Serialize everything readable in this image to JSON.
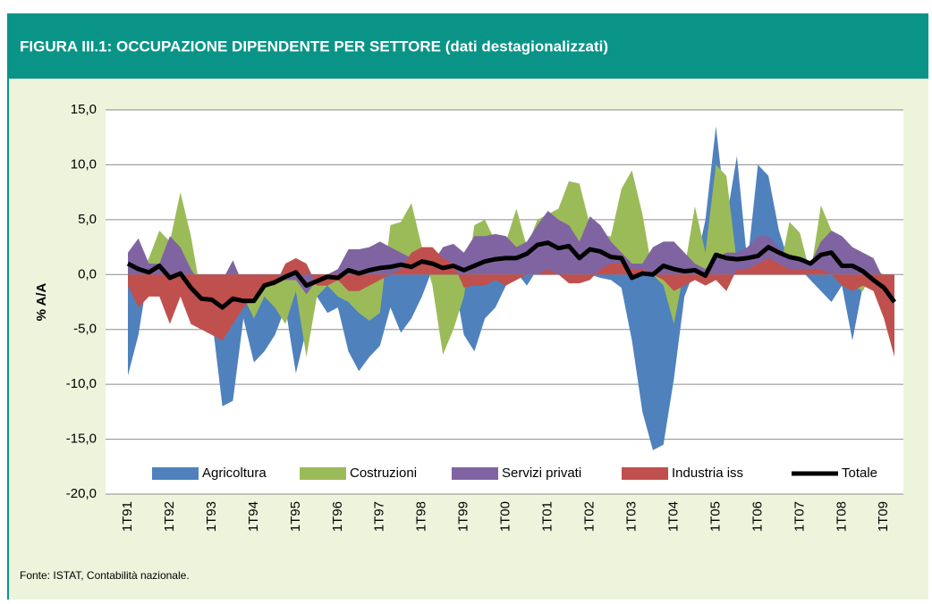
{
  "header": {
    "title": "FIGURA III.1: OCCUPAZIONE DIPENDENTE PER SETTORE (dati destagionalizzati)"
  },
  "chart_data": {
    "type": "area",
    "ylabel": "% A/A",
    "ylim": [
      -20,
      15
    ],
    "yticks": [
      {
        "value": -20,
        "label": "-20,0"
      },
      {
        "value": -15,
        "label": "-15,0"
      },
      {
        "value": -10,
        "label": "-10,0"
      },
      {
        "value": -5,
        "label": "-5,0"
      },
      {
        "value": 0,
        "label": "0,0"
      },
      {
        "value": 5,
        "label": "5,0"
      },
      {
        "value": 10,
        "label": "10,0"
      },
      {
        "value": 15,
        "label": "15,0"
      }
    ],
    "grid": true,
    "legend": "bottom",
    "categories": [
      "1T91",
      null,
      null,
      null,
      "1T92",
      null,
      null,
      null,
      "1T93",
      null,
      null,
      null,
      "1T94",
      null,
      null,
      null,
      "1T95",
      null,
      null,
      null,
      "1T96",
      null,
      null,
      null,
      "1T97",
      null,
      null,
      null,
      "1T98",
      null,
      null,
      null,
      "1T99",
      null,
      null,
      null,
      "1T00",
      null,
      null,
      null,
      "1T01",
      null,
      null,
      null,
      "1T02",
      null,
      null,
      null,
      "1T03",
      null,
      null,
      null,
      "1T04",
      null,
      null,
      null,
      "1T05",
      null,
      null,
      null,
      "1T06",
      null,
      null,
      null,
      "1T07",
      null,
      null,
      null,
      "1T08",
      null,
      null,
      null,
      "1T09",
      null
    ],
    "series": [
      {
        "name": "Agricoltura",
        "color": "#4f81bd",
        "values": [
          -9.2,
          -5.5,
          0.5,
          -1,
          -2,
          -1,
          -2,
          -3,
          -4,
          -12,
          -11.5,
          -4,
          -8,
          -7,
          -5.5,
          -3,
          -9,
          -5,
          -2,
          -3.5,
          -3,
          -7,
          -8.8,
          -7.5,
          -6.5,
          -3,
          -5.3,
          -4,
          -2,
          0.5,
          1,
          0,
          -5.5,
          -7,
          -4,
          -3,
          -1,
          0.2,
          -1,
          0.5,
          1,
          0.3,
          0.5,
          0.5,
          0,
          -0.3,
          -0.5,
          -1.2,
          -6,
          -12.5,
          -16,
          -15.5,
          -9.5,
          -2,
          0.5,
          5,
          13.5,
          5,
          10.8,
          1,
          10,
          9,
          4,
          1,
          0.5,
          -0.5,
          -1.5,
          -2.5,
          -1,
          -6,
          -1,
          0,
          -1.5,
          -2
        ]
      },
      {
        "name": "Costruzioni",
        "color": "#9bbb59",
        "values": [
          -1,
          -1,
          1.5,
          4,
          3,
          7.5,
          3.5,
          -2,
          -3,
          -3,
          -4,
          -2,
          -4,
          -2,
          -3,
          -4.5,
          -1.5,
          -7.5,
          -2,
          -1,
          -2,
          -2.5,
          -3.5,
          -4.2,
          -3.5,
          4.5,
          4.8,
          6.5,
          2.5,
          -1,
          -7.3,
          -5,
          -2,
          4.5,
          5,
          3,
          3,
          6,
          2.5,
          5,
          5.5,
          6,
          8.5,
          8.3,
          4.5,
          3.5,
          3.5,
          7.8,
          9.5,
          5.5,
          0,
          -1,
          -4.5,
          0.5,
          6.2,
          2,
          10,
          9,
          1,
          2,
          2,
          3,
          0,
          4.8,
          3.8,
          0,
          6.3,
          4,
          2.5,
          -1,
          -1.5,
          0.5,
          0,
          -3
        ]
      },
      {
        "name": "Servizi privati",
        "color": "#8064a2",
        "values": [
          2,
          3.3,
          1,
          1,
          3.5,
          2.5,
          0.5,
          -1,
          -0.5,
          -0.5,
          1.3,
          -1,
          -1,
          -0.5,
          -0.5,
          -0.5,
          -0.5,
          -1.8,
          -0.5,
          0,
          0.5,
          2.3,
          2.3,
          2.5,
          3,
          2.5,
          2,
          1.5,
          1,
          1,
          2.5,
          2.8,
          2,
          3.5,
          3.5,
          3.7,
          3.5,
          2.5,
          3,
          4.5,
          5.8,
          5,
          4.5,
          3,
          5.3,
          4.5,
          3,
          2,
          1,
          1,
          2.5,
          3,
          3,
          2,
          1,
          0.5,
          1.5,
          2,
          2,
          2.5,
          3.5,
          3.5,
          2.5,
          1.5,
          1.5,
          1,
          3,
          4,
          3.5,
          2.5,
          2,
          1.5,
          -0.5,
          -3
        ]
      },
      {
        "name": "Industria iss",
        "color": "#c0504d",
        "values": [
          -1,
          -3,
          -2,
          -2,
          -4.5,
          -2,
          -4.5,
          -5,
          -5.5,
          -6,
          -4.5,
          -3,
          -2,
          -1,
          -1,
          1,
          1.5,
          1,
          -1,
          -1,
          -0.5,
          -1.5,
          -1.5,
          -1,
          -0.5,
          0,
          0.5,
          2,
          2.5,
          2.5,
          1.5,
          1,
          -1.2,
          -1,
          -1,
          -0.5,
          -1,
          -0.5,
          0,
          0,
          0.5,
          0,
          -0.8,
          -0.8,
          -0.5,
          0.5,
          1,
          1,
          0.5,
          0.5,
          0,
          -0.5,
          -1.5,
          -1,
          -0.5,
          -1,
          -0.5,
          -1.5,
          0.5,
          0.5,
          1,
          1.5,
          1,
          0.5,
          0.5,
          0.5,
          0.5,
          0,
          -1,
          -1.5,
          -1,
          -1.5,
          -4,
          -7.5
        ]
      },
      {
        "name": "Totale",
        "color": "#000000",
        "type": "line",
        "values": [
          1,
          0.5,
          0.2,
          0.8,
          -0.3,
          0.1,
          -1.2,
          -2.2,
          -2.3,
          -3,
          -2.2,
          -2.4,
          -2.4,
          -1,
          -0.7,
          -0.2,
          0.2,
          -1,
          -0.6,
          -0.2,
          -0.3,
          0.4,
          0.1,
          0.4,
          0.6,
          0.7,
          0.9,
          0.7,
          1.2,
          1,
          0.6,
          0.8,
          0.4,
          0.8,
          1.2,
          1.4,
          1.5,
          1.5,
          1.9,
          2.7,
          2.9,
          2.4,
          2.6,
          1.5,
          2.3,
          2.1,
          1.6,
          1.5,
          -0.3,
          0.1,
          0,
          0.8,
          0.5,
          0.3,
          0.4,
          -0.1,
          1.8,
          1.5,
          1.4,
          1.5,
          1.7,
          2.5,
          2,
          1.6,
          1.4,
          1,
          1.8,
          2,
          0.8,
          0.8,
          0.3,
          -0.5,
          -1.2,
          -2.5
        ]
      }
    ]
  },
  "footer": {
    "source": "Fonte: ISTAT, Contabilità nazionale."
  }
}
